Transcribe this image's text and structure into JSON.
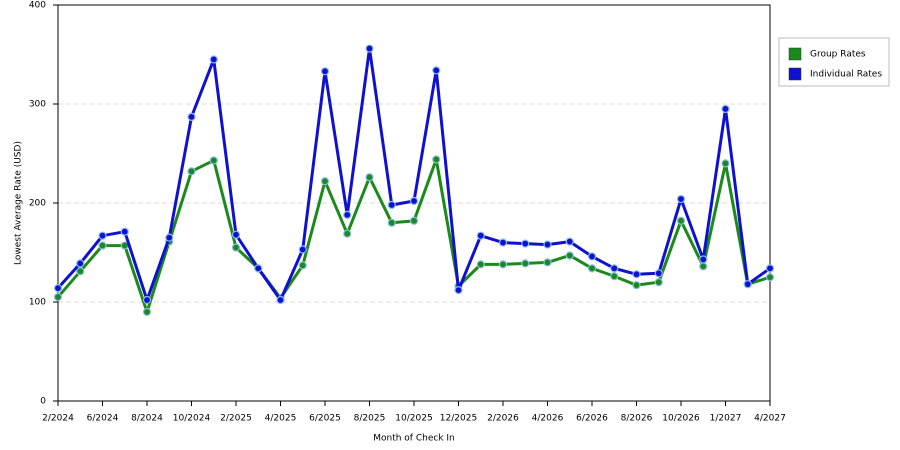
{
  "chart_data": {
    "type": "line",
    "x_label": "Month of Check In",
    "y_label": "Lowest Average Rate (USD)",
    "categories": [
      "2/2024",
      null,
      "6/2024",
      null,
      "8/2024",
      null,
      "10/2024",
      null,
      "2/2025",
      null,
      "4/2025",
      null,
      "6/2025",
      null,
      "8/2025",
      null,
      "10/2025",
      null,
      "12/2025",
      null,
      "2/2026",
      null,
      "4/2026",
      null,
      "6/2026",
      null,
      "8/2026",
      null,
      "10/2026",
      null,
      "1/2027",
      null,
      "4/2027"
    ],
    "series": [
      {
        "name": "Group Rates",
        "color": "#1a8a1a",
        "values": [
          105,
          131,
          157,
          157,
          90,
          161,
          232,
          243,
          155,
          134,
          104,
          137,
          222,
          169,
          226,
          180,
          182,
          244,
          116,
          138,
          138,
          139,
          140,
          147,
          134,
          126,
          117,
          120,
          182,
          136,
          240,
          118,
          125
        ]
      },
      {
        "name": "Individual Rates",
        "color": "#1010d0",
        "values": [
          114,
          139,
          167,
          171,
          102,
          165,
          287,
          345,
          168,
          134,
          102,
          153,
          333,
          188,
          356,
          198,
          202,
          334,
          112,
          167,
          160,
          159,
          158,
          161,
          146,
          134,
          128,
          129,
          204,
          143,
          295,
          118,
          134
        ]
      }
    ],
    "ylim": [
      0,
      400
    ],
    "yticks": [
      0,
      100,
      200,
      300,
      400
    ],
    "grid": true,
    "legend": "right"
  }
}
